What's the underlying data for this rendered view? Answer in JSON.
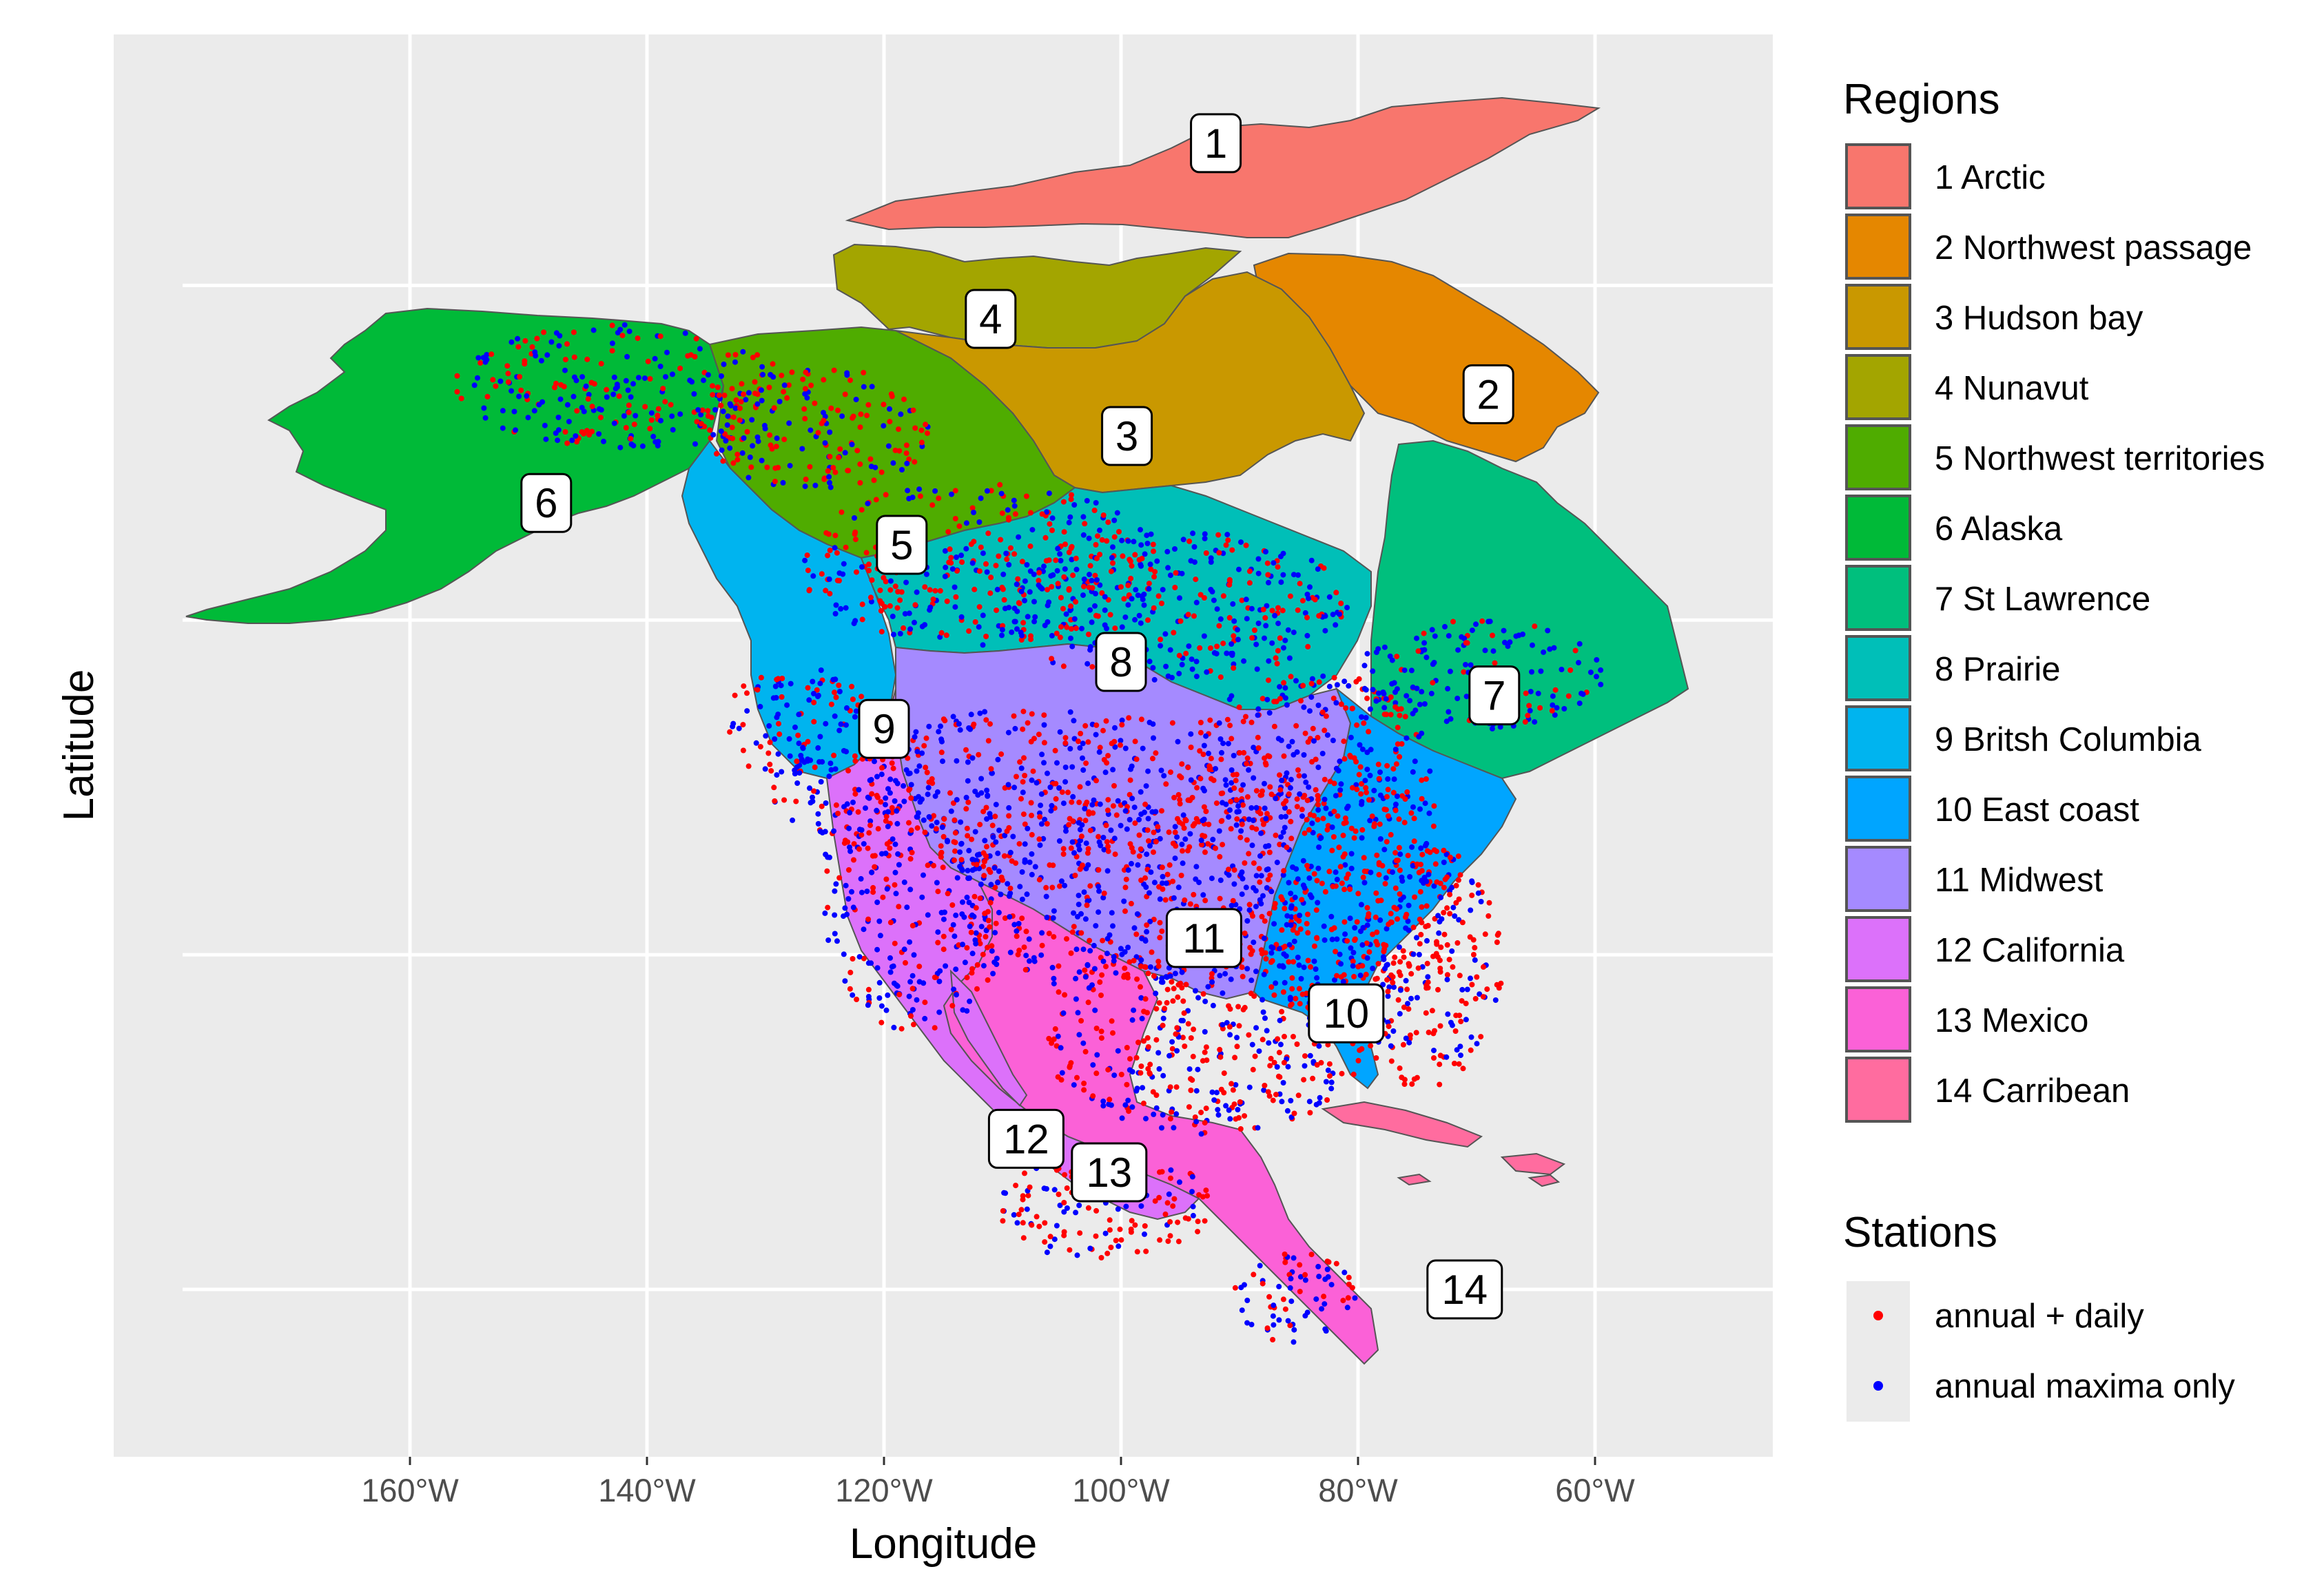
{
  "chart_data": {
    "type": "map",
    "xlabel": "Longitude",
    "ylabel": "Latitude",
    "xlim": [
      -185,
      -45
    ],
    "ylim": [
      0,
      85
    ],
    "x_ticks": [
      -160,
      -140,
      -120,
      -100,
      -80,
      -60
    ],
    "x_tick_labels": [
      "160°W",
      "140°W",
      "120°W",
      "100°W",
      "80°W",
      "60°W"
    ],
    "y_gridlines": [
      10,
      30,
      50,
      70
    ],
    "grid": true,
    "background": "#ebebeb",
    "region_legend": {
      "title": "Regions",
      "placement": "right",
      "items": [
        {
          "id": 1,
          "label": "1 Arctic",
          "color": "#F8766D"
        },
        {
          "id": 2,
          "label": "2 Northwest passage",
          "color": "#E58700"
        },
        {
          "id": 3,
          "label": "3 Hudson bay",
          "color": "#C99800"
        },
        {
          "id": 4,
          "label": "4 Nunavut",
          "color": "#A3A500"
        },
        {
          "id": 5,
          "label": "5 Northwest territories",
          "color": "#4FAC00"
        },
        {
          "id": 6,
          "label": "6 Alaska",
          "color": "#00BA38"
        },
        {
          "id": 7,
          "label": "7 St Lawrence",
          "color": "#00BF7D"
        },
        {
          "id": 8,
          "label": "8 Prairie",
          "color": "#00BFB8"
        },
        {
          "id": 9,
          "label": "9 Britsh Columbia",
          "color": "#00B4EF"
        },
        {
          "id": 10,
          "label": "10 East coast",
          "color": "#00A5FF"
        },
        {
          "id": 11,
          "label": "11 Midwest",
          "color": "#A58AFF"
        },
        {
          "id": 12,
          "label": "12 California",
          "color": "#DC71FA"
        },
        {
          "id": 13,
          "label": "13 Mexico",
          "color": "#FB61D7"
        },
        {
          "id": 14,
          "label": "14 Carribean",
          "color": "#FF6C9F"
        }
      ]
    },
    "station_legend": {
      "title": "Stations",
      "placement": "right",
      "items": [
        {
          "label": "annual + daily",
          "color": "#FF0000"
        },
        {
          "label": "annual maxima only",
          "color": "#0000FF"
        }
      ]
    },
    "region_labels": [
      {
        "label": "1",
        "lon": -92,
        "lat": 78.5
      },
      {
        "label": "2",
        "lon": -69,
        "lat": 63.5
      },
      {
        "label": "3",
        "lon": -99.5,
        "lat": 61
      },
      {
        "label": "4",
        "lon": -111,
        "lat": 68
      },
      {
        "label": "5",
        "lon": -118.5,
        "lat": 54.5
      },
      {
        "label": "6",
        "lon": -148.5,
        "lat": 57
      },
      {
        "label": "7",
        "lon": -68.5,
        "lat": 45.5
      },
      {
        "label": "8",
        "lon": -100,
        "lat": 47.5
      },
      {
        "label": "9",
        "lon": -120,
        "lat": 43.5
      },
      {
        "label": "10",
        "lon": -81,
        "lat": 26.5
      },
      {
        "label": "11",
        "lon": -93,
        "lat": 31
      },
      {
        "label": "12",
        "lon": -108,
        "lat": 19
      },
      {
        "label": "13",
        "lon": -101,
        "lat": 17
      },
      {
        "label": "14",
        "lon": -71,
        "lat": 10
      }
    ]
  }
}
